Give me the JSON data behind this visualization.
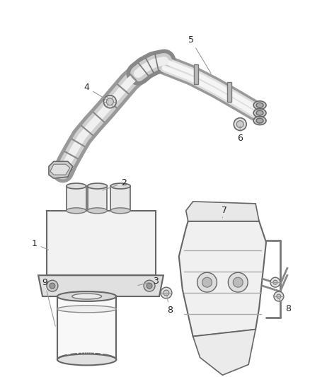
{
  "bg_color": "#ffffff",
  "lc": "#555555",
  "lg": "#cccccc",
  "dg": "#888888",
  "figsize": [
    4.38,
    5.33
  ],
  "dpi": 100,
  "label_fontsize": 9,
  "label_color": "#333333",
  "leader_color": "#888888"
}
